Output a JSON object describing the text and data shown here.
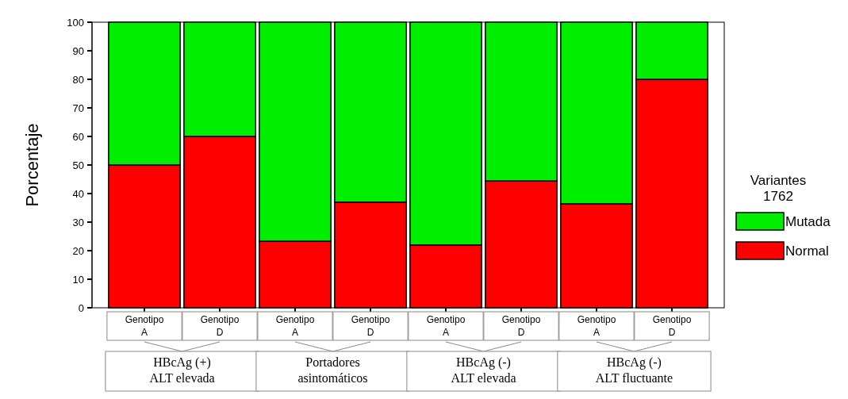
{
  "chart_data": {
    "type": "bar",
    "stacked": true,
    "ylabel": "Porcentaje",
    "legend_title": "Variantes 1762",
    "legend": "right",
    "categories": [
      "Genotipo A",
      "Genotipo D",
      "Genotipo A",
      "Genotipo D",
      "Genotipo A",
      "Genotipo D",
      "Genotipo A",
      "Genotipo D"
    ],
    "series": [
      {
        "name": "Normal",
        "color": "#ff0000",
        "values": [
          50,
          60,
          23.3,
          37,
          22,
          44.4,
          36.4,
          80
        ]
      },
      {
        "name": "Mutada",
        "color": "#00ee00",
        "values": [
          50,
          40,
          76.7,
          63,
          78,
          55.6,
          63.6,
          20
        ]
      }
    ],
    "ylim": [
      0,
      100
    ],
    "yticks": [
      0,
      10,
      20,
      30,
      40,
      50,
      60,
      70,
      80,
      90,
      100
    ],
    "grid": false,
    "annotations": [
      "HBcAg (+) ALT elevada",
      "Portadores asintomáticos",
      "HBcAg (-) ALT elevada",
      "HBcAg (-) ALT fluctuante"
    ]
  }
}
